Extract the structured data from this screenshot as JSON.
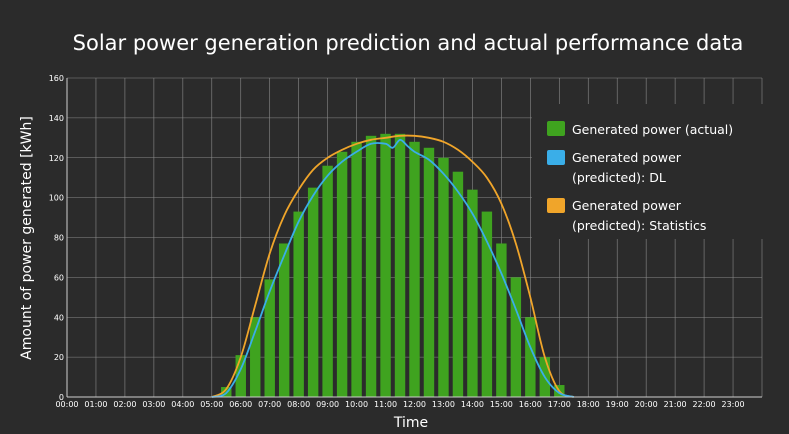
{
  "chart_data": {
    "type": "bar",
    "title": "Solar power generation prediction and actual performance data",
    "xlabel": "Time",
    "ylabel": "Amount of power generated [kWh]",
    "ylim": [
      0,
      160
    ],
    "yticks": [
      0,
      20,
      40,
      60,
      80,
      100,
      120,
      140,
      160
    ],
    "categories": [
      "00:00",
      "01:00",
      "02:00",
      "03:00",
      "04:00",
      "05:00",
      "06:00",
      "07:00",
      "08:00",
      "09:00",
      "10:00",
      "11:00",
      "12:00",
      "13:00",
      "14:00",
      "15:00",
      "16:00",
      "17:00",
      "18:00",
      "19:00",
      "20:00",
      "21:00",
      "22:00",
      "23:00"
    ],
    "grid": true,
    "legend_position": "right",
    "actual": {
      "name": "Generated power (actual)",
      "color": "#3fa31f",
      "x": [
        5.5,
        6,
        6.5,
        7,
        7.5,
        8,
        8.5,
        9,
        9.5,
        10,
        10.5,
        11,
        11.5,
        12,
        12.5,
        13,
        13.5,
        14,
        14.5,
        15,
        15.5,
        16,
        16.5,
        17
      ],
      "values": [
        5,
        21,
        40,
        59,
        77,
        93,
        105,
        116,
        123,
        128,
        131,
        132,
        132,
        128,
        125,
        120,
        113,
        104,
        93,
        77,
        60,
        40,
        20,
        6
      ]
    },
    "predicted_dl": {
      "name": "Generated power (predicted): DL",
      "legend_lines": [
        "Generated power",
        "(predicted): DL"
      ],
      "color": "#3aaee8",
      "x": [
        5,
        5.5,
        6,
        6.5,
        7,
        7.5,
        8,
        8.5,
        9,
        9.5,
        10,
        10.5,
        11,
        11.25,
        11.5,
        11.75,
        12,
        12.5,
        13,
        13.5,
        14,
        14.5,
        15,
        15.5,
        16,
        16.5,
        17,
        17.5
      ],
      "values": [
        0,
        2,
        14,
        33,
        53,
        71,
        88,
        101,
        111,
        118,
        123,
        127,
        127,
        125,
        129,
        126,
        123,
        119,
        112,
        103,
        92,
        78,
        62,
        44,
        25,
        10,
        2,
        0
      ]
    },
    "predicted_stats": {
      "name": "Generated power (predicted): Statistics",
      "legend_lines": [
        "Generated power",
        "(predicted): Statistics"
      ],
      "color": "#f0a52a",
      "x": [
        5,
        5.5,
        6,
        6.5,
        7,
        7.5,
        8,
        8.5,
        9,
        9.5,
        10,
        10.5,
        11,
        11.5,
        12,
        12.5,
        13,
        13.5,
        14,
        14.5,
        15,
        15.5,
        16,
        16.5,
        17,
        17.5
      ],
      "values": [
        0,
        4,
        20,
        46,
        72,
        91,
        104,
        114,
        120,
        124,
        127,
        129,
        130,
        131,
        131,
        130,
        128,
        124,
        118,
        110,
        97,
        77,
        50,
        20,
        3,
        0
      ]
    }
  }
}
